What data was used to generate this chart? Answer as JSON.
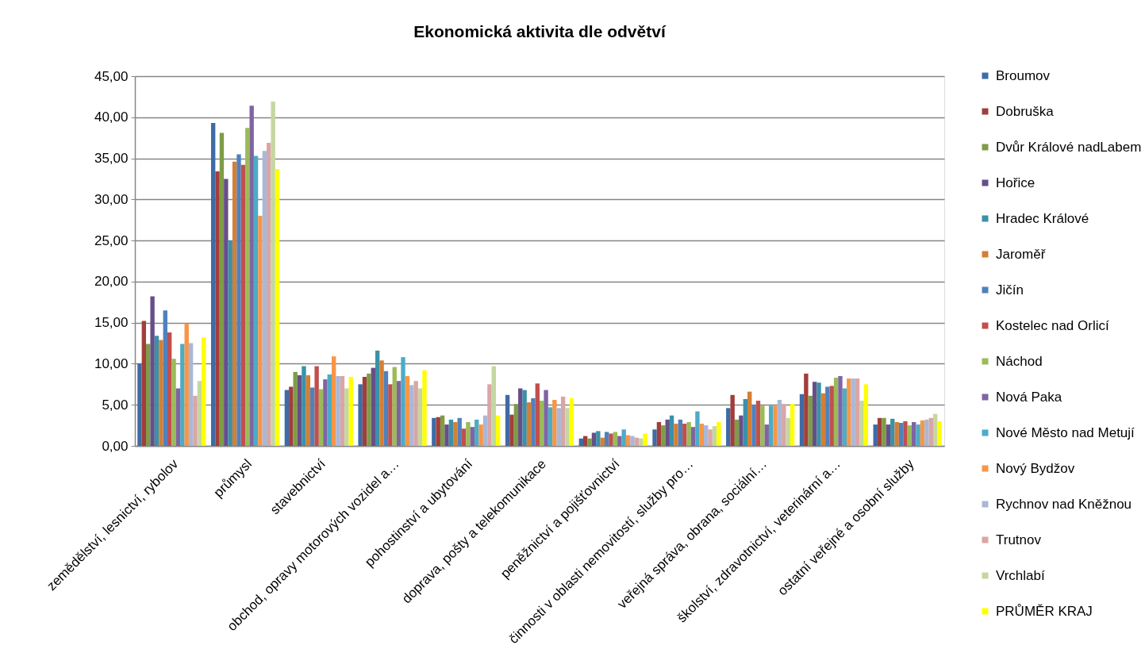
{
  "chart_data": {
    "type": "bar",
    "title": "Ekonomická aktivita dle odvětví",
    "categories": [
      "zemědělství, lesnictví, rybolov",
      "průmysl",
      "stavebnictví",
      "obchod, opravy motorových vozidel a…",
      "pohostinství a ubytování",
      "doprava, pošty a telekomunikace",
      "peněžnictví a pojišťovnictví",
      "činnosti v oblasti nemovitostí, služby pro…",
      "veřejná správa, obrana, sociální…",
      "školství, zdravotnictví, veterinární a…",
      "ostatní veřejné a osobní služby"
    ],
    "series": [
      {
        "name": "Broumov",
        "color": "#3d6ba5",
        "values": [
          10.0,
          39.3,
          6.8,
          7.5,
          3.4,
          6.2,
          0.9,
          2.0,
          4.6,
          6.3,
          2.6
        ]
      },
      {
        "name": "Dobruška",
        "color": "#a13e3b",
        "values": [
          15.2,
          33.4,
          7.2,
          8.4,
          3.5,
          3.8,
          1.2,
          2.9,
          6.2,
          8.8,
          3.4
        ]
      },
      {
        "name": "Dvůr Králové nadLabem",
        "color": "#7f9c46",
        "values": [
          12.4,
          38.1,
          9.0,
          8.8,
          3.7,
          5.1,
          0.9,
          2.5,
          3.2,
          6.1,
          3.4
        ]
      },
      {
        "name": "Hořice",
        "color": "#664f89",
        "values": [
          18.2,
          32.5,
          8.6,
          9.5,
          2.6,
          7.0,
          1.6,
          3.2,
          3.7,
          7.8,
          2.6
        ]
      },
      {
        "name": "Hradec Králové",
        "color": "#3b91a7",
        "values": [
          13.4,
          25.0,
          9.7,
          11.6,
          3.2,
          6.8,
          1.8,
          3.7,
          5.7,
          7.7,
          3.3
        ]
      },
      {
        "name": "Jaroměř",
        "color": "#d47f34",
        "values": [
          12.9,
          34.6,
          8.6,
          10.4,
          2.9,
          5.3,
          1.0,
          2.7,
          6.6,
          6.4,
          2.9
        ]
      },
      {
        "name": "Jičín",
        "color": "#4f81bd",
        "values": [
          16.5,
          35.5,
          7.1,
          9.1,
          3.4,
          5.8,
          1.7,
          3.2,
          5.0,
          7.2,
          2.8
        ]
      },
      {
        "name": "Kostelec nad Orlicí",
        "color": "#c0504d",
        "values": [
          13.8,
          34.2,
          9.7,
          7.5,
          2.1,
          7.6,
          1.5,
          2.7,
          5.5,
          7.3,
          3.0
        ]
      },
      {
        "name": "Náchod",
        "color": "#9bbb59",
        "values": [
          10.6,
          38.7,
          6.9,
          9.6,
          2.9,
          5.5,
          1.7,
          2.9,
          4.9,
          8.3,
          2.5
        ]
      },
      {
        "name": "Nová Paka",
        "color": "#8064a2",
        "values": [
          7.0,
          41.4,
          8.1,
          7.9,
          2.3,
          6.8,
          1.2,
          2.3,
          2.6,
          8.5,
          2.9
        ]
      },
      {
        "name": "Nové Město nad Metují",
        "color": "#4bacc6",
        "values": [
          12.4,
          35.3,
          8.7,
          10.8,
          3.2,
          4.7,
          2.0,
          4.2,
          4.9,
          7.0,
          2.6
        ]
      },
      {
        "name": "Nový Bydžov",
        "color": "#f79646",
        "values": [
          14.9,
          28.0,
          10.9,
          8.5,
          2.6,
          5.6,
          1.3,
          2.7,
          4.9,
          8.2,
          3.1
        ]
      },
      {
        "name": "Rychnov nad Kněžnou",
        "color": "#a9b8d8",
        "values": [
          12.5,
          35.9,
          8.5,
          7.4,
          3.7,
          4.6,
          1.2,
          2.5,
          5.6,
          8.2,
          3.2
        ]
      },
      {
        "name": "Trutnov",
        "color": "#d9a6a5",
        "values": [
          6.1,
          36.9,
          8.5,
          7.9,
          7.5,
          6.0,
          1.0,
          2.0,
          5.1,
          8.2,
          3.4
        ]
      },
      {
        "name": "Vrchlabí",
        "color": "#c5d7a1",
        "values": [
          7.9,
          41.9,
          7.0,
          7.0,
          9.7,
          4.6,
          0.9,
          2.4,
          3.4,
          5.5,
          3.9
        ]
      },
      {
        "name": "PRŮMĚR KRAJ",
        "color": "#ffff00",
        "values": [
          13.2,
          33.7,
          8.4,
          9.2,
          3.7,
          5.8,
          1.5,
          2.9,
          5.1,
          7.5,
          3.0
        ]
      }
    ],
    "ylim": [
      0,
      45
    ],
    "yticks": [
      {
        "value": 0,
        "label": "0,00"
      },
      {
        "value": 5,
        "label": "5,00"
      },
      {
        "value": 10,
        "label": "10,00"
      },
      {
        "value": 15,
        "label": "15,00"
      },
      {
        "value": 20,
        "label": "20,00"
      },
      {
        "value": 25,
        "label": "25,00"
      },
      {
        "value": 30,
        "label": "30,00"
      },
      {
        "value": 35,
        "label": "35,00"
      },
      {
        "value": 40,
        "label": "40,00"
      },
      {
        "value": 45,
        "label": "45,00"
      }
    ],
    "grid": "y",
    "legend": "right"
  }
}
